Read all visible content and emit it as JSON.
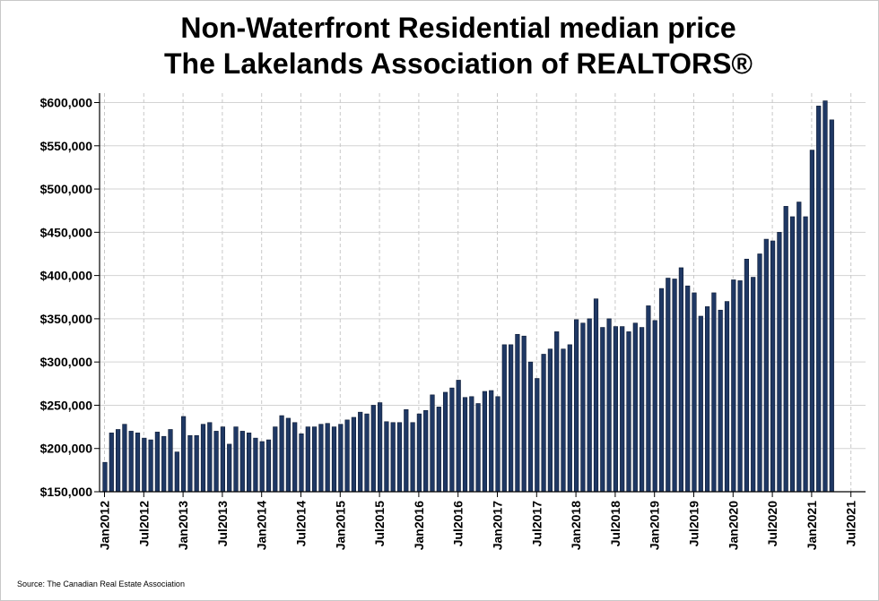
{
  "chart_data": {
    "type": "bar",
    "title": [
      "Non-Waterfront Residential median price",
      "The Lakelands Association of REALTORS®"
    ],
    "source": "Source: The Canadian Real Estate Association",
    "ylim": [
      150000,
      600000
    ],
    "yticks": [
      {
        "value": 150000,
        "label": "$150,000"
      },
      {
        "value": 200000,
        "label": "$200,000"
      },
      {
        "value": 250000,
        "label": "$250,000"
      },
      {
        "value": 300000,
        "label": "$300,000"
      },
      {
        "value": 350000,
        "label": "$350,000"
      },
      {
        "value": 400000,
        "label": "$400,000"
      },
      {
        "value": 450000,
        "label": "$450,000"
      },
      {
        "value": 500000,
        "label": "$500,000"
      },
      {
        "value": 550000,
        "label": "$550,000"
      },
      {
        "value": 600000,
        "label": "$600,000"
      }
    ],
    "xticks": [
      "Jan2012",
      "Jul2012",
      "Jan2013",
      "Jul2013",
      "Jan2014",
      "Jul2014",
      "Jan2015",
      "Jul2015",
      "Jan2016",
      "Jul2016",
      "Jan2017",
      "Jul2017",
      "Jan2018",
      "Jul2018",
      "Jan2019",
      "Jul2019",
      "Jan2020",
      "Jul2020",
      "Jan2021",
      "Jul2021"
    ],
    "grid": {
      "horizontal": true,
      "vertical": true,
      "vertical_style": "dashed"
    },
    "bar_color": "#1f3864",
    "series": [
      {
        "values": [
          184000,
          218000,
          222000,
          228000,
          220000,
          218000,
          212000,
          210000,
          219000,
          214000,
          222000,
          196000,
          237000,
          215000,
          215000,
          228000,
          230000,
          220000,
          225000,
          205000,
          225000,
          220000,
          218000,
          212000,
          208000,
          210000,
          225000,
          238000,
          235000,
          230000,
          217000,
          225000,
          225000,
          228000,
          229000,
          225000,
          228000,
          233000,
          236000,
          242000,
          240000,
          250000,
          253000,
          231000,
          230000,
          230000,
          245000,
          230000,
          240000,
          244000,
          262000,
          248000,
          265000,
          270000,
          279000,
          259000,
          260000,
          252000,
          266000,
          267000,
          260000,
          320000,
          320000,
          332000,
          330000,
          300000,
          281000,
          309000,
          315000,
          335000,
          315000,
          320000,
          349000,
          345000,
          350000,
          373000,
          340000,
          350000,
          341000,
          341000,
          335000,
          345000,
          340000,
          365000,
          348000,
          385000,
          397000,
          396000,
          409000,
          388000,
          380000,
          353000,
          364000,
          380000,
          360000,
          370000,
          395000,
          394000,
          419000,
          398000,
          425000,
          442000,
          440000,
          450000,
          480000,
          468000,
          485000,
          468000,
          545000,
          596000,
          602000,
          580000
        ]
      }
    ]
  }
}
